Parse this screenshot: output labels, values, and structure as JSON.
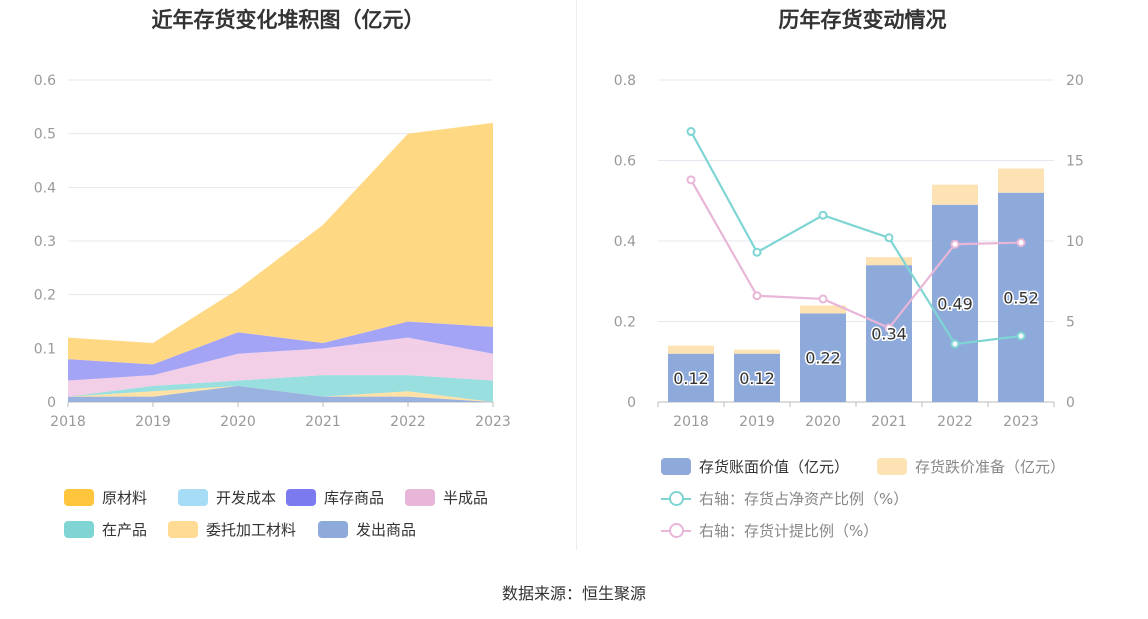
{
  "source_note": "数据来源：恒生聚源",
  "chart_data": [
    {
      "type": "area",
      "stacked": true,
      "title": "近年存货变化堆积图（亿元）",
      "x": [
        "2018",
        "2019",
        "2020",
        "2021",
        "2022",
        "2023"
      ],
      "ylim": [
        0,
        0.6
      ],
      "yticks": [
        "0",
        "0.1",
        "0.2",
        "0.3",
        "0.4",
        "0.5",
        "0.6"
      ],
      "grid": true,
      "legend_position": "bottom",
      "series": [
        {
          "name": "发出商品",
          "color": "#8eaadb",
          "values": [
            0.01,
            0.01,
            0.03,
            0.01,
            0.01,
            0.0
          ]
        },
        {
          "name": "委托加工材料",
          "color": "#ffdd9b",
          "values": [
            0.0,
            0.01,
            0.0,
            0.0,
            0.01,
            0.0
          ]
        },
        {
          "name": "在产品",
          "color": "#8fdcdc",
          "values": [
            0.0,
            0.01,
            0.01,
            0.04,
            0.03,
            0.04
          ]
        },
        {
          "name": "半成品",
          "color": "#f2c9e4",
          "values": [
            0.03,
            0.02,
            0.05,
            0.05,
            0.07,
            0.05
          ]
        },
        {
          "name": "库存商品",
          "color": "#9a9af5",
          "values": [
            0.04,
            0.02,
            0.04,
            0.01,
            0.03,
            0.05
          ]
        },
        {
          "name": "开发成本",
          "color": "#a6dcf5",
          "values": [
            0,
            0,
            0,
            0,
            0,
            0
          ]
        },
        {
          "name": "原材料",
          "color": "#ffd476",
          "values": [
            0.04,
            0.04,
            0.08,
            0.22,
            0.35,
            0.38
          ]
        }
      ],
      "legend_order": [
        "原材料",
        "开发成本",
        "库存商品",
        "半成品",
        "在产品",
        "委托加工材料",
        "发出商品"
      ],
      "legend_colors": {
        "原材料": "#ffc53d",
        "开发成本": "#a6dcf5",
        "库存商品": "#7b7bef",
        "半成品": "#e8b6d8",
        "在产品": "#7fd4d4",
        "委托加工材料": "#ffdb94",
        "发出商品": "#8eaadb"
      }
    },
    {
      "type": "bar",
      "stacked": true,
      "title": "历年存货变动情况",
      "categories": [
        "2018",
        "2019",
        "2020",
        "2021",
        "2022",
        "2023"
      ],
      "ylim": [
        0,
        0.8
      ],
      "yticks": [
        "0",
        "0.2",
        "0.4",
        "0.6",
        "0.8"
      ],
      "y2lim": [
        0,
        20
      ],
      "y2ticks": [
        "0",
        "5",
        "10",
        "15",
        "20"
      ],
      "grid": true,
      "legend_position": "bottom",
      "series": [
        {
          "name": "存货账面价值（亿元）",
          "color": "#8eaadb",
          "values": [
            0.12,
            0.12,
            0.22,
            0.34,
            0.49,
            0.52
          ],
          "labels": [
            "0.12",
            "0.12",
            "0.22",
            "0.34",
            "0.49",
            "0.52"
          ]
        },
        {
          "name": "存货跌价准备（亿元）",
          "color": "#fde3b4",
          "values": [
            0.02,
            0.01,
            0.02,
            0.02,
            0.05,
            0.06
          ]
        }
      ],
      "line_series": [
        {
          "name": "右轴：存货占净资产比例（%）",
          "color": "#7fd4d4",
          "values": [
            16.8,
            9.3,
            11.6,
            10.2,
            3.6,
            4.1
          ]
        },
        {
          "name": "右轴：存货计提比例（%）",
          "color": "#e8b6d8",
          "values": [
            13.8,
            6.6,
            6.4,
            4.6,
            9.8,
            9.9
          ]
        }
      ]
    }
  ]
}
